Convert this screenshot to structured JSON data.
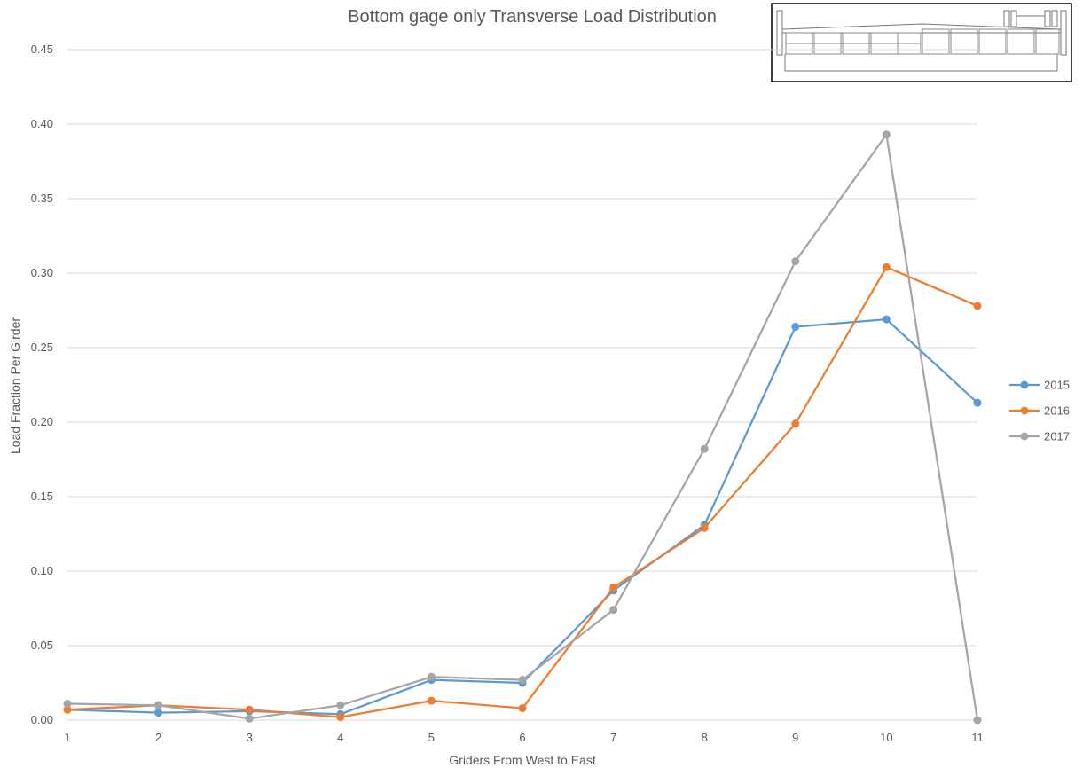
{
  "chart_data": {
    "type": "line",
    "title": "Bottom gage only Transverse Load Distribution",
    "xlabel": "Griders From West to East",
    "ylabel": "Load Fraction Per Girder",
    "x": [
      1,
      2,
      3,
      4,
      5,
      6,
      7,
      8,
      9,
      10,
      11
    ],
    "x_tick_labels": [
      "1",
      "2",
      "3",
      "4",
      "5",
      "6",
      "7",
      "8",
      "9",
      "10",
      "11"
    ],
    "ylim": [
      0,
      0.45
    ],
    "y_tick_labels": [
      "0.00",
      "0.05",
      "0.10",
      "0.15",
      "0.20",
      "0.25",
      "0.30",
      "0.35",
      "0.40",
      "0.45"
    ],
    "grid": "horizontal",
    "legend": "right",
    "series": [
      {
        "name": "2015",
        "color": "#5B9BD5",
        "values": [
          0.007,
          0.005,
          0.006,
          0.004,
          0.027,
          0.025,
          0.087,
          0.131,
          0.264,
          0.269,
          0.213
        ]
      },
      {
        "name": "2016",
        "color": "#ED7D31",
        "values": [
          0.007,
          0.01,
          0.007,
          0.002,
          0.013,
          0.008,
          0.089,
          0.129,
          0.199,
          0.304,
          0.278
        ]
      },
      {
        "name": "2017",
        "color": "#A5A5A5",
        "values": [
          0.011,
          0.01,
          0.001,
          0.01,
          0.029,
          0.027,
          0.074,
          0.182,
          0.308,
          0.393,
          0.0
        ]
      }
    ]
  }
}
